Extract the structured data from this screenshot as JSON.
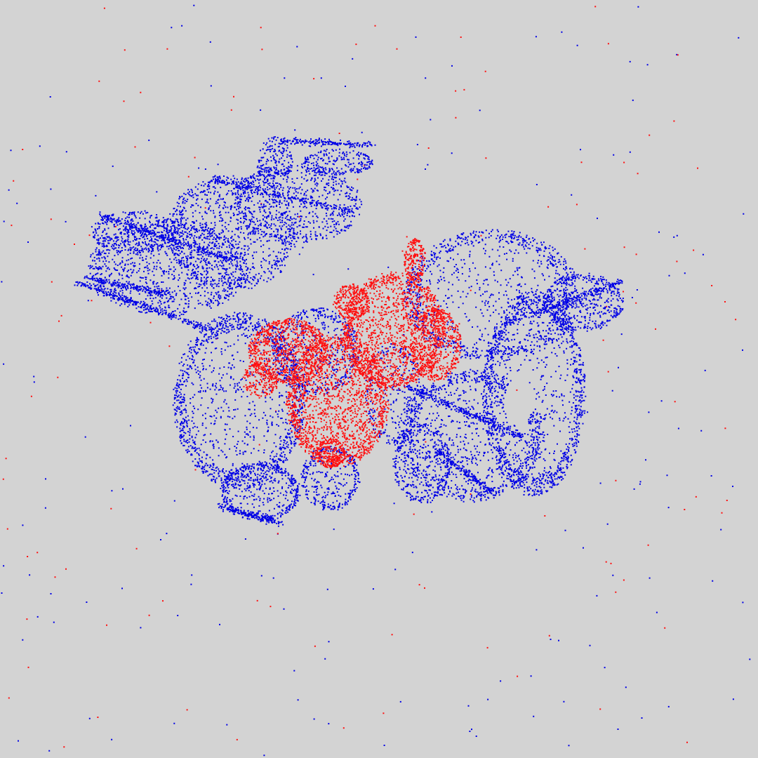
{
  "scene": {
    "background_color": "#d3d3d3",
    "clouds": [
      {
        "name": "source-cloud",
        "color": "#0000e6",
        "depicts": "dragon-point-cloud"
      },
      {
        "name": "target-cloud",
        "color": "#ff1010",
        "depicts": "dragon-point-cloud"
      }
    ]
  }
}
